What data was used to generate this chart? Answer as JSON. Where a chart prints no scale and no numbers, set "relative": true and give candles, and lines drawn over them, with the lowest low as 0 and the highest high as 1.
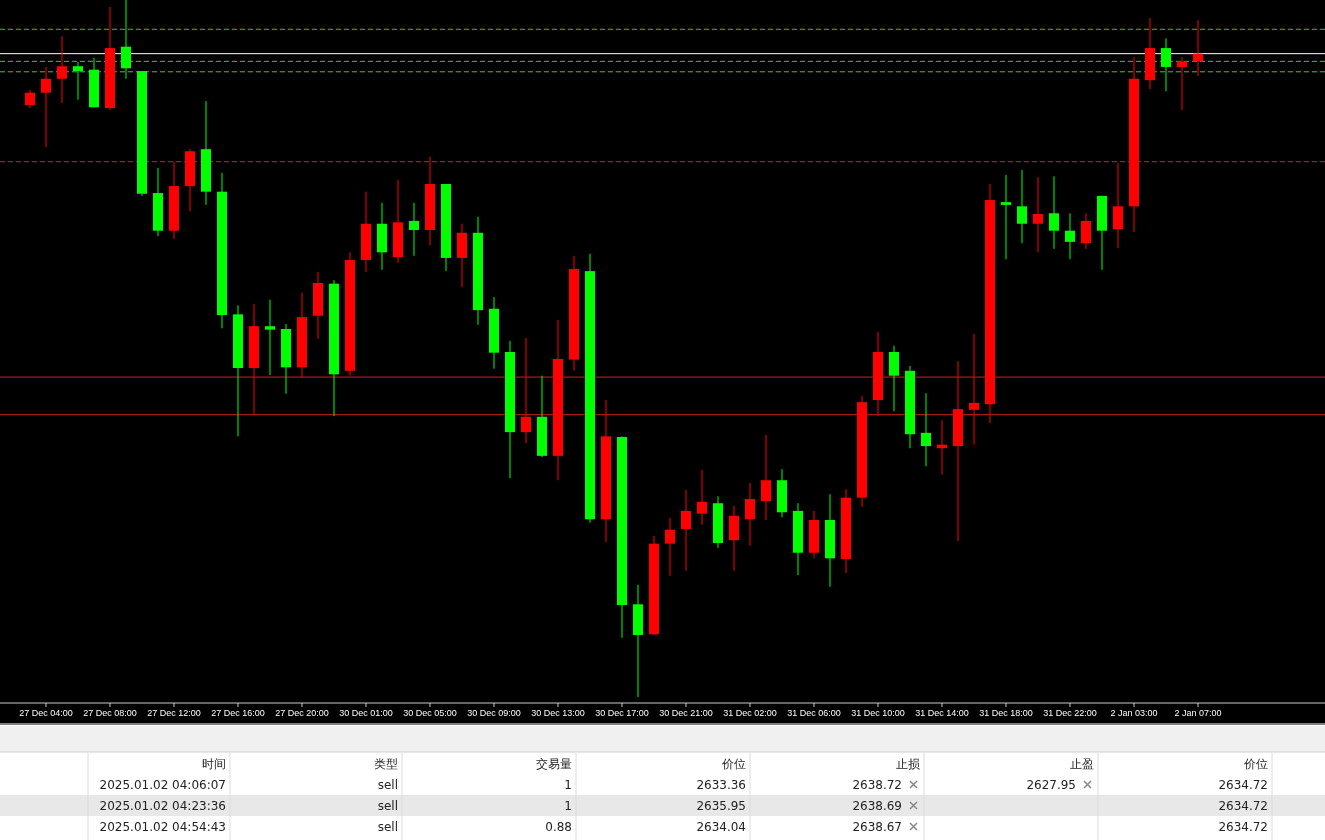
{
  "chart_data": [
    {
      "type": "candlestick",
      "relative": true,
      "categories": [
        null,
        "27 Dec 04:00",
        null,
        null,
        null,
        "27 Dec 08:00",
        null,
        null,
        null,
        "27 Dec 12:00",
        null,
        null,
        null,
        "27 Dec 16:00",
        null,
        null,
        null,
        "27 Dec 20:00",
        null,
        null,
        null,
        "30 Dec 01:00",
        null,
        null,
        null,
        "30 Dec 05:00",
        null,
        null,
        null,
        "30 Dec 09:00",
        null,
        null,
        null,
        "30 Dec 13:00",
        null,
        null,
        null,
        "30 Dec 17:00",
        null,
        null,
        null,
        "30 Dec 21:00",
        null,
        null,
        null,
        "31 Dec 02:00",
        null,
        null,
        null,
        "31 Dec 06:00",
        null,
        null,
        null,
        "31 Dec 10:00",
        null,
        null,
        null,
        "31 Dec 14:00",
        null,
        null,
        null,
        "31 Dec 18:00",
        null,
        null,
        null,
        "31 Dec 22:00",
        null,
        null,
        null,
        "2 Jan 03:00",
        null,
        null,
        null,
        "2 Jan 07:00"
      ],
      "ohlc": [
        [
          0.849,
          0.871,
          0.845,
          0.867
        ],
        [
          0.867,
          0.904,
          0.789,
          0.887
        ],
        [
          0.887,
          0.948,
          0.852,
          0.905
        ],
        [
          0.905,
          0.911,
          0.857,
          0.898
        ],
        [
          0.9,
          0.917,
          0.846,
          0.846
        ],
        [
          0.845,
          0.99,
          0.842,
          0.931
        ],
        [
          0.933,
          1,
          0.887,
          0.902
        ],
        [
          0.898,
          0.898,
          0.719,
          0.722
        ],
        [
          0.723,
          0.759,
          0.661,
          0.669
        ],
        [
          0.669,
          0.768,
          0.657,
          0.733
        ],
        [
          0.733,
          0.786,
          0.697,
          0.783
        ],
        [
          0.786,
          0.855,
          0.706,
          0.725
        ],
        [
          0.725,
          0.752,
          0.529,
          0.548
        ],
        [
          0.549,
          0.562,
          0.374,
          0.472
        ],
        [
          0.472,
          0.564,
          0.405,
          0.532
        ],
        [
          0.532,
          0.57,
          0.462,
          0.527
        ],
        [
          0.528,
          0.535,
          0.435,
          0.473
        ],
        [
          0.473,
          0.58,
          0.459,
          0.545
        ],
        [
          0.547,
          0.61,
          0.514,
          0.594
        ],
        [
          0.593,
          0.598,
          0.403,
          0.463
        ],
        [
          0.468,
          0.638,
          0.461,
          0.627
        ],
        [
          0.627,
          0.725,
          0.61,
          0.679
        ],
        [
          0.679,
          0.709,
          0.613,
          0.638
        ],
        [
          0.631,
          0.742,
          0.623,
          0.681
        ],
        [
          0.683,
          0.709,
          0.633,
          0.67
        ],
        [
          0.67,
          0.775,
          0.648,
          0.736
        ],
        [
          0.736,
          0.736,
          0.611,
          0.63
        ],
        [
          0.63,
          0.679,
          0.588,
          0.666
        ],
        [
          0.666,
          0.689,
          0.534,
          0.555
        ],
        [
          0.557,
          0.574,
          0.471,
          0.494
        ],
        [
          0.495,
          0.511,
          0.314,
          0.38
        ],
        [
          0.38,
          0.515,
          0.364,
          0.402
        ],
        [
          0.402,
          0.461,
          0.344,
          0.346
        ],
        [
          0.346,
          0.541,
          0.311,
          0.485
        ],
        [
          0.484,
          0.633,
          0.468,
          0.614
        ],
        [
          0.611,
          0.636,
          0.25,
          0.255
        ],
        [
          0.255,
          0.426,
          0.222,
          0.374
        ],
        [
          0.373,
          0.374,
          0.085,
          0.132
        ],
        [
          0.133,
          0.161,
          0,
          0.089
        ],
        [
          0.09,
          0.231,
          0.089,
          0.22
        ],
        [
          0.22,
          0.257,
          0.174,
          0.24
        ],
        [
          0.241,
          0.297,
          0.181,
          0.267
        ],
        [
          0.263,
          0.326,
          0.247,
          0.28
        ],
        [
          0.278,
          0.288,
          0.214,
          0.221
        ],
        [
          0.225,
          0.274,
          0.181,
          0.26
        ],
        [
          0.255,
          0.307,
          0.217,
          0.284
        ],
        [
          0.281,
          0.376,
          0.254,
          0.311
        ],
        [
          0.311,
          0.327,
          0.258,
          0.265
        ],
        [
          0.267,
          0.278,
          0.175,
          0.207
        ],
        [
          0.207,
          0.267,
          0.199,
          0.254
        ],
        [
          0.254,
          0.291,
          0.158,
          0.199
        ],
        [
          0.198,
          0.298,
          0.178,
          0.286
        ],
        [
          0.286,
          0.432,
          0.273,
          0.423
        ],
        [
          0.426,
          0.524,
          0.403,
          0.495
        ],
        [
          0.495,
          0.504,
          0.41,
          0.461
        ],
        [
          0.468,
          0.475,
          0.357,
          0.377
        ],
        [
          0.379,
          0.436,
          0.331,
          0.36
        ],
        [
          0.357,
          0.397,
          0.319,
          0.362
        ],
        [
          0.36,
          0.482,
          0.224,
          0.413
        ],
        [
          0.412,
          0.521,
          0.362,
          0.422
        ],
        [
          0.42,
          0.736,
          0.393,
          0.713
        ],
        [
          0.71,
          0.749,
          0.628,
          0.706
        ],
        [
          0.704,
          0.756,
          0.651,
          0.679
        ],
        [
          0.679,
          0.746,
          0.638,
          0.693
        ],
        [
          0.694,
          0.747,
          0.643,
          0.669
        ],
        [
          0.669,
          0.694,
          0.628,
          0.653
        ],
        [
          0.651,
          0.694,
          0.643,
          0.683
        ],
        [
          0.719,
          0.719,
          0.613,
          0.669
        ],
        [
          0.671,
          0.766,
          0.644,
          0.704
        ],
        [
          0.704,
          0.918,
          0.667,
          0.887
        ],
        [
          0.885,
          0.974,
          0.872,
          0.931
        ],
        [
          0.931,
          0.945,
          0.869,
          0.904
        ],
        [
          0.904,
          0.918,
          0.842,
          0.912
        ],
        [
          0.912,
          0.971,
          0.891,
          0.923
        ]
      ],
      "colors": [
        "#ff0000",
        "#ff0000",
        "#ff0000",
        "#00ff00",
        "#00ff00",
        "#ff0000",
        "#00ff00",
        "#00ff00",
        "#00ff00",
        "#ff0000",
        "#ff0000",
        "#00ff00",
        "#00ff00",
        "#00ff00",
        "#ff0000",
        "#00ff00",
        "#00ff00",
        "#ff0000",
        "#ff0000",
        "#00ff00",
        "#ff0000",
        "#ff0000",
        "#00ff00",
        "#ff0000",
        "#00ff00",
        "#ff0000",
        "#00ff00",
        "#ff0000",
        "#00ff00",
        "#00ff00",
        "#00ff00",
        "#ff0000",
        "#00ff00",
        "#ff0000",
        "#ff0000",
        "#00ff00",
        "#ff0000",
        "#00ff00",
        "#00ff00",
        "#ff0000",
        "#ff0000",
        "#ff0000",
        "#ff0000",
        "#00ff00",
        "#ff0000",
        "#ff0000",
        "#ff0000",
        "#00ff00",
        "#00ff00",
        "#ff0000",
        "#00ff00",
        "#ff0000",
        "#ff0000",
        "#ff0000",
        "#00ff00",
        "#00ff00",
        "#00ff00",
        "#ff0000",
        "#ff0000",
        "#ff0000",
        "#ff0000",
        "#00ff00",
        "#00ff00",
        "#ff0000",
        "#00ff00",
        "#00ff00",
        "#ff0000",
        "#00ff00",
        "#ff0000",
        "#ff0000",
        "#ff0000",
        "#00ff00",
        "#ff0000",
        "#ff0000"
      ],
      "ref_lines": [
        {
          "axis": "y",
          "value": 0.958,
          "color": "#33cc33",
          "line_style": "dashed"
        },
        {
          "axis": "y",
          "value": 0.923,
          "color": "#ffffff",
          "line_style": "solid"
        },
        {
          "axis": "y",
          "value": 0.912,
          "color": "#33cc33",
          "line_style": "dashed"
        },
        {
          "axis": "y",
          "value": 0.897,
          "color": "#33cc33",
          "line_style": "dashed"
        },
        {
          "axis": "y",
          "value": 0.768,
          "color": "#cc2222",
          "line_style": "dashed"
        },
        {
          "axis": "y",
          "value": 0.459,
          "color": "#cc2222",
          "line_style": "solid"
        },
        {
          "axis": "y",
          "value": 0.405,
          "color": "#cc2222",
          "line_style": "solid"
        }
      ]
    },
    {
      "type": "other",
      "categories": [
        "时间",
        "类型",
        "交易量",
        "价位",
        "止损",
        "止盈",
        "价位"
      ],
      "cells": [
        [
          "2025.01.02 04:06:07",
          "sell",
          "1",
          "2633.36",
          "2638.72",
          "2627.95",
          "2634.72"
        ],
        [
          "2025.01.02 04:23:36",
          "sell",
          "1",
          "2635.95",
          "2638.69",
          null,
          "2634.72"
        ],
        [
          "2025.01.02 04:54:43",
          "sell",
          "0.88",
          "2634.04",
          "2638.67",
          null,
          "2634.72"
        ]
      ]
    }
  ]
}
